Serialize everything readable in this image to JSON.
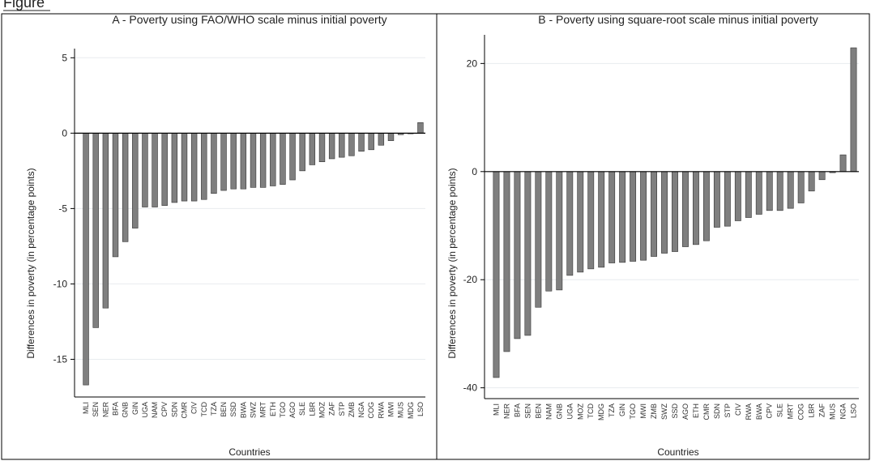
{
  "header_fragment": "Figure",
  "chart_data": [
    {
      "type": "bar",
      "title": "A - Poverty using FAO/WHO scale minus initial poverty",
      "xlabel": "Countries",
      "ylabel": "Differences in poverty (in percentage points)",
      "ylim": [
        -17.5,
        5.5
      ],
      "yticks": [
        5,
        0,
        -5,
        -10,
        -15
      ],
      "grid": true,
      "categories": [
        "MLI",
        "SEN",
        "NER",
        "BFA",
        "GNB",
        "GIN",
        "UGA",
        "NAM",
        "CPV",
        "SDN",
        "CMR",
        "CIV",
        "TCD",
        "TZA",
        "BEN",
        "SSD",
        "BWA",
        "SWZ",
        "MRT",
        "ETH",
        "TGO",
        "AGO",
        "SLE",
        "LBR",
        "MOZ",
        "ZAF",
        "STP",
        "ZMB",
        "NGA",
        "COG",
        "RWA",
        "MWI",
        "MUS",
        "MDG",
        "LSO"
      ],
      "values": [
        -16.7,
        -12.9,
        -11.6,
        -8.2,
        -7.2,
        -6.3,
        -4.9,
        -4.9,
        -4.8,
        -4.6,
        -4.5,
        -4.5,
        -4.4,
        -4.0,
        -3.8,
        -3.7,
        -3.7,
        -3.6,
        -3.6,
        -3.5,
        -3.4,
        -3.1,
        -2.5,
        -2.1,
        -1.9,
        -1.7,
        -1.6,
        -1.5,
        -1.2,
        -1.1,
        -0.8,
        -0.5,
        -0.1,
        0.0,
        0.7
      ]
    },
    {
      "type": "bar",
      "title": "B - Poverty using square-root scale minus initial poverty",
      "xlabel": "Countries",
      "ylabel": "Differences in poverty (in percentage points)",
      "ylim": [
        -42,
        25
      ],
      "yticks": [
        20,
        0,
        -20,
        -40
      ],
      "grid": true,
      "categories": [
        "MLI",
        "NER",
        "BFA",
        "SEN",
        "BEN",
        "NAM",
        "GNB",
        "UGA",
        "MOZ",
        "TCD",
        "MDG",
        "TZA",
        "GIN",
        "TGO",
        "MWI",
        "ZMB",
        "SWZ",
        "SSD",
        "AGO",
        "ETH",
        "CMR",
        "SDN",
        "STP",
        "CIV",
        "RWA",
        "BWA",
        "CPV",
        "SLE",
        "MRT",
        "COG",
        "LBR",
        "ZAF",
        "MUS",
        "NGA",
        "LSO"
      ],
      "values": [
        -38.1,
        -33.3,
        -30.9,
        -30.3,
        -25.1,
        -22.1,
        -21.9,
        -19.2,
        -18.6,
        -18.0,
        -17.7,
        -16.9,
        -16.8,
        -16.6,
        -16.4,
        -15.7,
        -15.1,
        -14.8,
        -13.9,
        -13.5,
        -12.8,
        -10.3,
        -10.1,
        -9.1,
        -8.5,
        -7.9,
        -7.2,
        -7.2,
        -6.8,
        -5.8,
        -3.6,
        -1.5,
        -0.2,
        3.1,
        22.9
      ]
    }
  ]
}
